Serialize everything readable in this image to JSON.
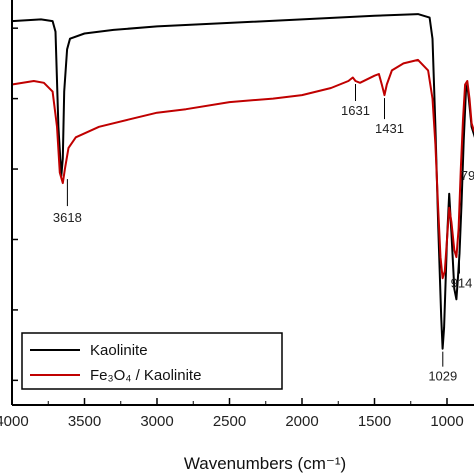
{
  "chart_data": {
    "type": "line",
    "xlabel": "Wavenumbers (cm⁻¹)",
    "xlim": [
      4000,
      800
    ],
    "x_reversed": true,
    "x_ticks": [
      4000,
      3500,
      3000,
      2500,
      2000,
      1500,
      1000
    ],
    "x_tick_labels": [
      "4000",
      "3500",
      "3000",
      "2500",
      "2000",
      "1500",
      "1000"
    ],
    "y_tick_labels_visible": false,
    "series": [
      {
        "name": "Kaolinite",
        "color": "#000000",
        "points": [
          [
            4000,
            0.92
          ],
          [
            3800,
            0.925
          ],
          [
            3720,
            0.92
          ],
          [
            3700,
            0.89
          ],
          [
            3680,
            0.62
          ],
          [
            3660,
            0.48
          ],
          [
            3650,
            0.53
          ],
          [
            3640,
            0.72
          ],
          [
            3620,
            0.84
          ],
          [
            3600,
            0.87
          ],
          [
            3500,
            0.885
          ],
          [
            3300,
            0.895
          ],
          [
            3000,
            0.905
          ],
          [
            2500,
            0.915
          ],
          [
            2000,
            0.925
          ],
          [
            1500,
            0.935
          ],
          [
            1200,
            0.94
          ],
          [
            1120,
            0.93
          ],
          [
            1100,
            0.87
          ],
          [
            1080,
            0.62
          ],
          [
            1060,
            0.33
          ],
          [
            1040,
            0.08
          ],
          [
            1030,
            -0.01
          ],
          [
            1020,
            0.05
          ],
          [
            1000,
            0.3
          ],
          [
            985,
            0.43
          ],
          [
            970,
            0.32
          ],
          [
            950,
            0.16
          ],
          [
            935,
            0.13
          ],
          [
            925,
            0.19
          ],
          [
            914,
            0.26
          ],
          [
            900,
            0.4
          ],
          [
            885,
            0.58
          ],
          [
            870,
            0.72
          ],
          [
            860,
            0.74
          ],
          [
            845,
            0.68
          ],
          [
            830,
            0.62
          ],
          [
            815,
            0.6
          ],
          [
            800,
            0.58
          ]
        ]
      },
      {
        "name": "Fe₃O₄ / Kaolinite",
        "color": "#c00000",
        "points": [
          [
            4000,
            0.74
          ],
          [
            3850,
            0.75
          ],
          [
            3780,
            0.745
          ],
          [
            3720,
            0.72
          ],
          [
            3690,
            0.62
          ],
          [
            3670,
            0.49
          ],
          [
            3650,
            0.46
          ],
          [
            3635,
            0.5
          ],
          [
            3610,
            0.56
          ],
          [
            3560,
            0.59
          ],
          [
            3400,
            0.62
          ],
          [
            3200,
            0.64
          ],
          [
            3000,
            0.66
          ],
          [
            2800,
            0.67
          ],
          [
            2500,
            0.69
          ],
          [
            2200,
            0.7
          ],
          [
            2000,
            0.71
          ],
          [
            1800,
            0.73
          ],
          [
            1680,
            0.75
          ],
          [
            1650,
            0.76
          ],
          [
            1631,
            0.75
          ],
          [
            1600,
            0.745
          ],
          [
            1500,
            0.765
          ],
          [
            1470,
            0.77
          ],
          [
            1450,
            0.74
          ],
          [
            1431,
            0.71
          ],
          [
            1415,
            0.74
          ],
          [
            1380,
            0.78
          ],
          [
            1300,
            0.8
          ],
          [
            1200,
            0.81
          ],
          [
            1130,
            0.78
          ],
          [
            1100,
            0.7
          ],
          [
            1080,
            0.57
          ],
          [
            1060,
            0.38
          ],
          [
            1045,
            0.25
          ],
          [
            1030,
            0.19
          ],
          [
            1015,
            0.21
          ],
          [
            1000,
            0.3
          ],
          [
            985,
            0.39
          ],
          [
            970,
            0.35
          ],
          [
            950,
            0.27
          ],
          [
            935,
            0.25
          ],
          [
            920,
            0.33
          ],
          [
            905,
            0.5
          ],
          [
            890,
            0.64
          ],
          [
            875,
            0.74
          ],
          [
            860,
            0.75
          ],
          [
            845,
            0.7
          ],
          [
            830,
            0.63
          ],
          [
            815,
            0.61
          ],
          [
            800,
            0.6
          ]
        ]
      }
    ],
    "annotations": [
      {
        "text": "3618",
        "x": 3618,
        "y": 0.48,
        "series": 0
      },
      {
        "text": "1631",
        "x": 1631,
        "y": 0.75,
        "series": 1
      },
      {
        "text": "1431",
        "x": 1431,
        "y": 0.71,
        "series": 1
      },
      {
        "text": "1029",
        "x": 1029,
        "y": -0.01,
        "series": 0
      },
      {
        "text": "914",
        "x": 914,
        "y": 0.26,
        "series": 0
      },
      {
        "text": "79",
        "x": 795,
        "y": 0.58,
        "series": 0
      }
    ],
    "legend_position": "bottom-left",
    "grid": false
  }
}
